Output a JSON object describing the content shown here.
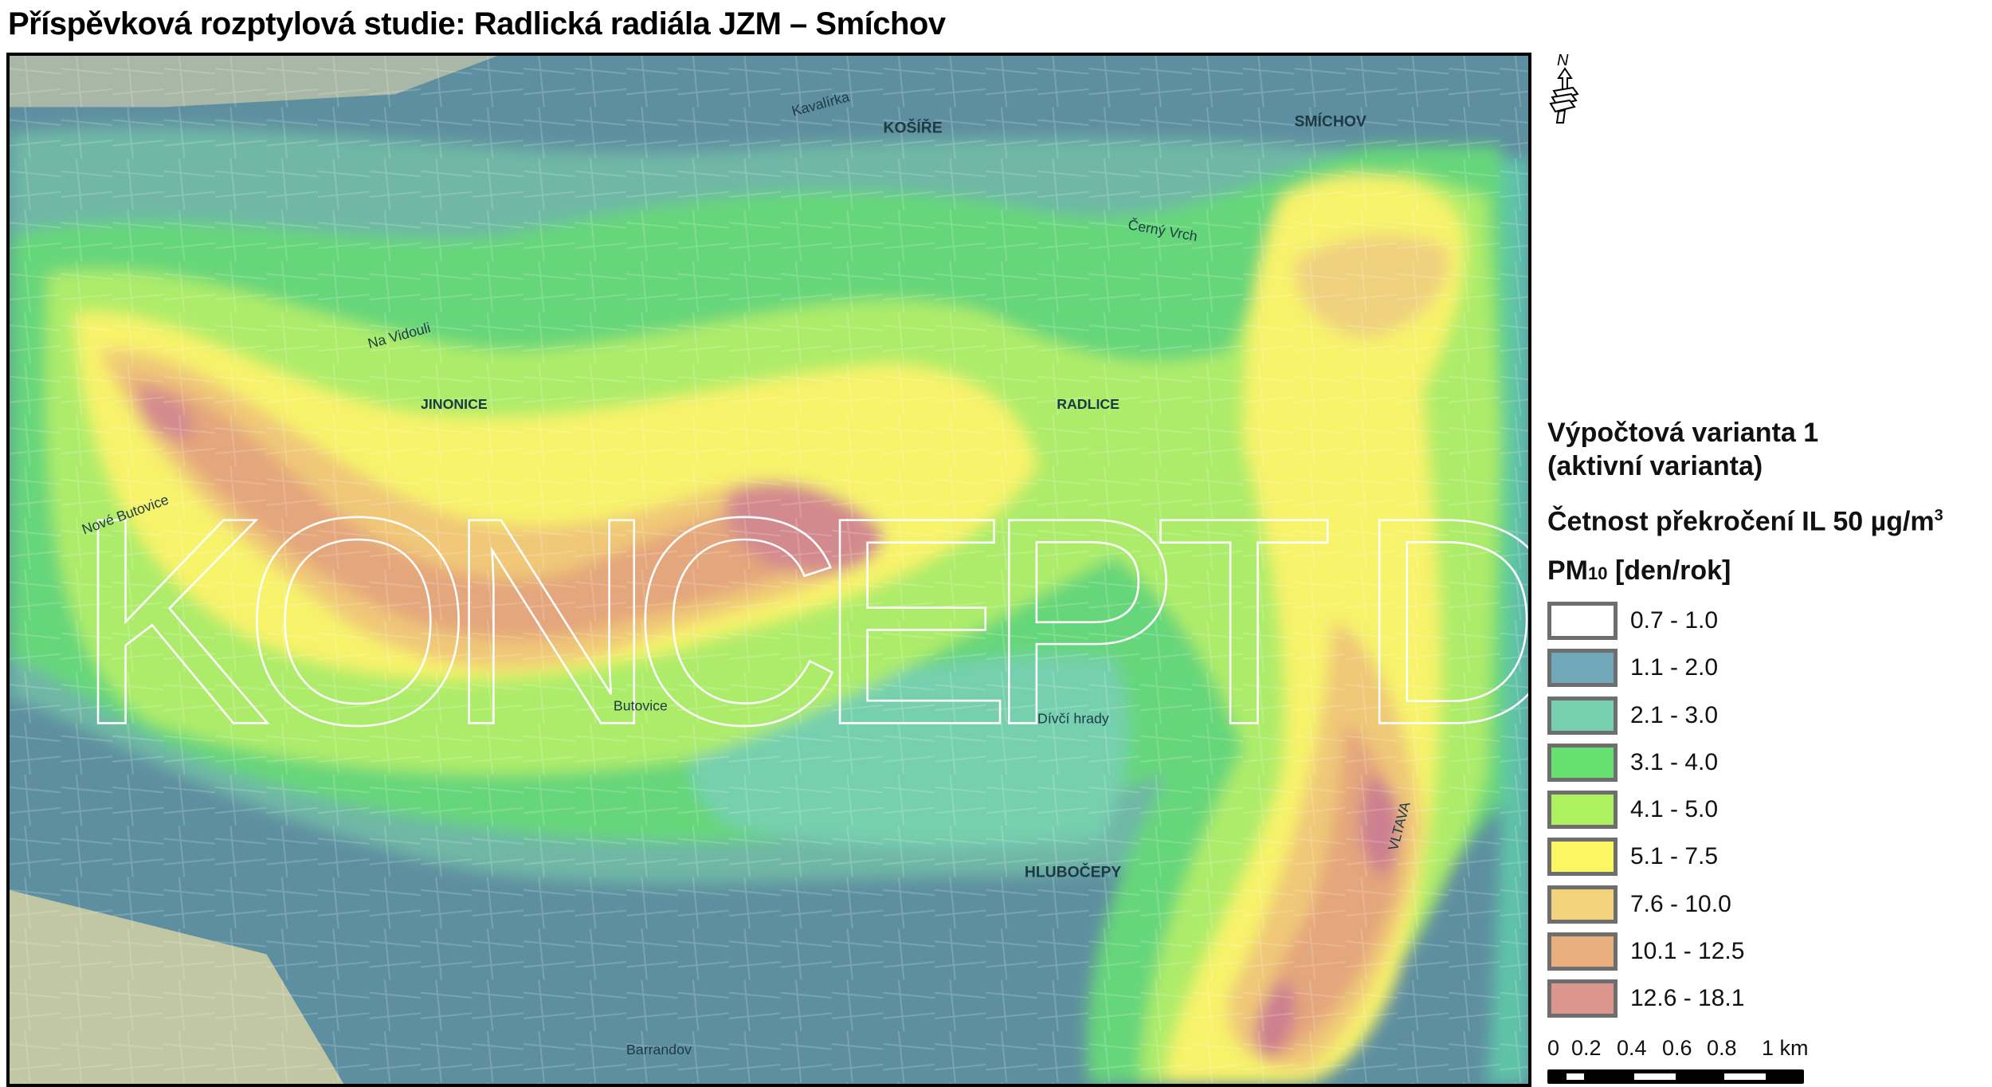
{
  "title": "Příspěvková rozptylová studie: Radlická radiála JZM – Smíchov",
  "watermark": "KONCEPT DUR",
  "north_arrow": {
    "label": "N",
    "icon": "north-arrow-icon"
  },
  "map_labels": {
    "kosire": "KOŠÍŘE",
    "smichov": "SMÍCHOV",
    "jinonice": "JINONICE",
    "radlice": "RADLICE",
    "hlubocepy": "HLUBOČEPY",
    "nove_butovice": "Nové Butovice",
    "divci_hrady": "Dívčí hrady",
    "barrandov": "Barrandov",
    "na_vidouli": "Na Vidouli",
    "kavalirka": "Kavalírka",
    "vltava": "VLTAVA",
    "butovice": "Butovice",
    "cerny_vrch": "Černý Vrch"
  },
  "legend": {
    "title_line1": "Výpočtová varianta 1",
    "title_line2": "(aktivní varianta)",
    "quantity": "Četnost překročení IL 50 µg/m",
    "quantity_sup": "3",
    "pollutant": "PM",
    "pollutant_sub": "10",
    "unit": "[den/rok]",
    "classes": [
      {
        "label": "0.7 - 1.0",
        "color": "#ffffff"
      },
      {
        "label": "1.1 - 2.0",
        "color": "#6fa8b8"
      },
      {
        "label": "2.1 - 3.0",
        "color": "#76cfae"
      },
      {
        "label": "3.1 - 4.0",
        "color": "#66e070"
      },
      {
        "label": "4.1 - 5.0",
        "color": "#adf060"
      },
      {
        "label": "5.1 - 7.5",
        "color": "#fbf664"
      },
      {
        "label": "7.6 - 10.0",
        "color": "#f3d27c"
      },
      {
        "label": "10.1 - 12.5",
        "color": "#e9ae7e"
      },
      {
        "label": "12.6 - 18.1",
        "color": "#dc968e"
      }
    ]
  },
  "scale_bar": {
    "labels": [
      "0",
      "0.2",
      "0.4",
      "0.6",
      "0.8",
      "1 km"
    ]
  }
}
